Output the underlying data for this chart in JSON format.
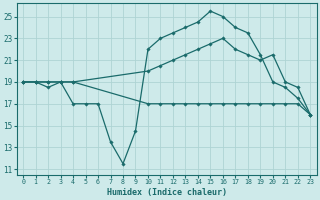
{
  "xlabel": "Humidex (Indice chaleur)",
  "ylabel": "",
  "bg_color": "#ceeaea",
  "line_color": "#1a6b6b",
  "grid_color": "#aed4d4",
  "xlim": [
    -0.5,
    23.5
  ],
  "ylim": [
    10.5,
    26.2
  ],
  "yticks": [
    11,
    13,
    15,
    17,
    19,
    21,
    23,
    25
  ],
  "xticks": [
    0,
    1,
    2,
    3,
    4,
    5,
    6,
    7,
    8,
    9,
    10,
    11,
    12,
    13,
    14,
    15,
    16,
    17,
    18,
    19,
    20,
    21,
    22,
    23
  ],
  "lines": [
    {
      "x": [
        0,
        1,
        2,
        3,
        4,
        5,
        6,
        7,
        8,
        9,
        10,
        11,
        12,
        13,
        14,
        15,
        16,
        17,
        18,
        19,
        20,
        21,
        22,
        23
      ],
      "y": [
        19,
        19,
        18.5,
        19,
        17,
        17,
        17,
        13.5,
        11.5,
        14.5,
        22,
        23,
        23.5,
        24,
        24.5,
        25.5,
        25,
        24,
        23.5,
        21.5,
        19,
        18.5,
        17.5,
        16
      ]
    },
    {
      "x": [
        0,
        1,
        2,
        3,
        4,
        10,
        11,
        12,
        13,
        14,
        15,
        16,
        17,
        18,
        19,
        20,
        21,
        22,
        23
      ],
      "y": [
        19,
        19,
        19,
        19,
        19,
        20,
        20.5,
        21,
        21.5,
        22,
        22.5,
        23,
        22,
        21.5,
        21,
        21.5,
        19,
        18.5,
        16
      ]
    },
    {
      "x": [
        0,
        1,
        2,
        3,
        4,
        10,
        11,
        12,
        13,
        14,
        15,
        16,
        17,
        18,
        19,
        20,
        21,
        22,
        23
      ],
      "y": [
        19,
        19,
        19,
        19,
        19,
        17,
        17,
        17,
        17,
        17,
        17,
        17,
        17,
        17,
        17,
        17,
        17,
        17,
        16
      ]
    }
  ]
}
